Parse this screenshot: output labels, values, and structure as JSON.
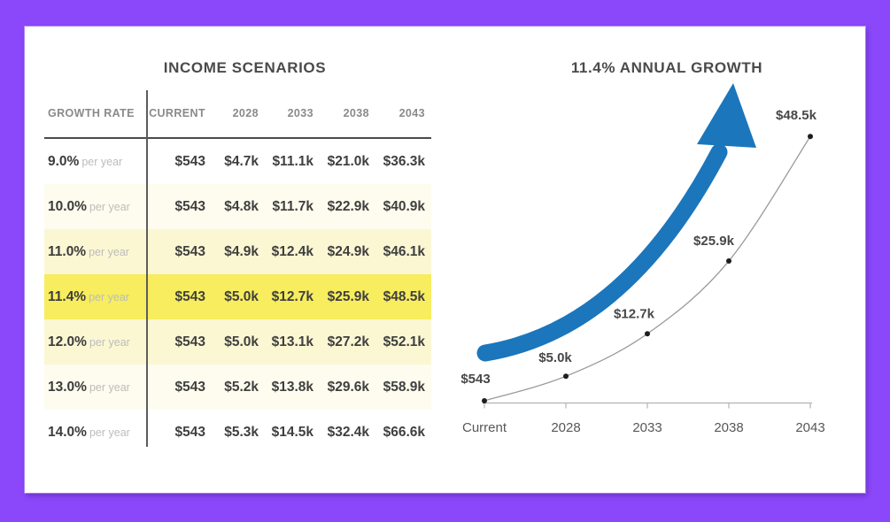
{
  "page": {
    "background_color": "#8A48FA",
    "card_color": "#FFFFFF"
  },
  "income_table": {
    "title": "INCOME SCENARIOS",
    "columns": [
      "GROWTH RATE",
      "CURRENT",
      "2028",
      "2033",
      "2038",
      "2043"
    ],
    "rate_suffix": "per year",
    "highlight_colors": {
      "none": "transparent",
      "faint": "#FEFCEE",
      "light": "#FBF7D3",
      "strong": "#F7ED5E"
    },
    "rows": [
      {
        "rate": "9.0%",
        "highlight": "none",
        "values": [
          "$543",
          "$4.7k",
          "$11.1k",
          "$21.0k",
          "$36.3k"
        ]
      },
      {
        "rate": "10.0%",
        "highlight": "faint",
        "values": [
          "$543",
          "$4.8k",
          "$11.7k",
          "$22.9k",
          "$40.9k"
        ]
      },
      {
        "rate": "11.0%",
        "highlight": "light",
        "values": [
          "$543",
          "$4.9k",
          "$12.4k",
          "$24.9k",
          "$46.1k"
        ]
      },
      {
        "rate": "11.4%",
        "highlight": "strong",
        "values": [
          "$543",
          "$5.0k",
          "$12.7k",
          "$25.9k",
          "$48.5k"
        ]
      },
      {
        "rate": "12.0%",
        "highlight": "light",
        "values": [
          "$543",
          "$5.0k",
          "$13.1k",
          "$27.2k",
          "$52.1k"
        ]
      },
      {
        "rate": "13.0%",
        "highlight": "faint",
        "values": [
          "$543",
          "$5.2k",
          "$13.8k",
          "$29.6k",
          "$58.9k"
        ]
      },
      {
        "rate": "14.0%",
        "highlight": "none",
        "values": [
          "$543",
          "$5.3k",
          "$14.5k",
          "$32.4k",
          "$66.6k"
        ]
      }
    ]
  },
  "chart_data": {
    "type": "line",
    "title": "11.4% ANNUAL GROWTH",
    "categories": [
      "Current",
      "2028",
      "2033",
      "2038",
      "2043"
    ],
    "values_k": [
      0.543,
      5.0,
      12.7,
      25.9,
      48.5
    ],
    "point_labels": [
      "$543",
      "$5.0k",
      "$12.7k",
      "$25.9k",
      "$48.5k"
    ],
    "ylim_k": [
      0,
      50
    ],
    "grid": false,
    "legend": "none",
    "line_color": "#9a9a9a",
    "dot_color": "#1d1d1d",
    "axis_color": "#b3b3b3",
    "arrow_color": "#1B76BC",
    "annotation": "thick blue curved growth arrow pointing up-right"
  }
}
